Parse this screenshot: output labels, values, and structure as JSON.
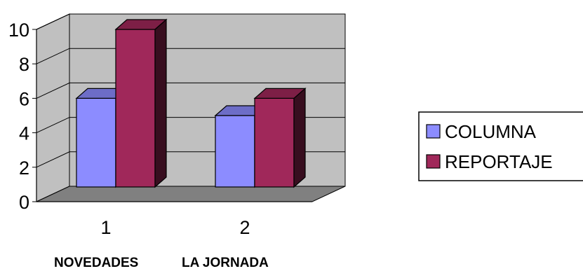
{
  "chart_data": {
    "type": "bar",
    "style": "3d-clustered-column",
    "categories": [
      "1",
      "2"
    ],
    "series": [
      {
        "name": "COLUMNA",
        "values": [
          6,
          5
        ],
        "color": "#8c8cff"
      },
      {
        "name": "REPORTAJE",
        "values": [
          10,
          6
        ],
        "color": "#a0285a"
      }
    ],
    "ylim": [
      0,
      10
    ],
    "yticks": [
      "0",
      "2",
      "4",
      "6",
      "8",
      "10"
    ],
    "grid": true,
    "legend": "right",
    "title": "",
    "xlabel": "",
    "ylabel": ""
  },
  "footer": {
    "label_1": "NOVEDADES",
    "label_2": "LA JORNADA"
  },
  "colors": {
    "wall": "#c0c0c0",
    "floor": "#808080",
    "bar_edge": "#000000"
  }
}
